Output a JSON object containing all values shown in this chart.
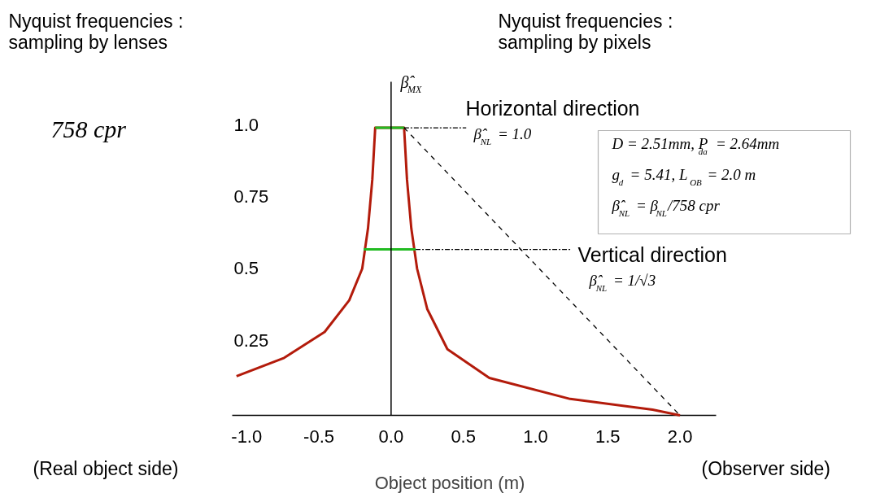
{
  "chart_data": {
    "type": "line",
    "xlabel": "Object position (m)",
    "ylabel": "β̂$_{MX}$",
    "xlim": [
      -1.1,
      2.25
    ],
    "xticks": [
      {
        "value": -1.0,
        "label": "-1.0"
      },
      {
        "value": -0.5,
        "label": "-0.5"
      },
      {
        "value": 0.0,
        "label": "0.0"
      },
      {
        "value": 0.5,
        "label": "0.5"
      },
      {
        "value": 1.0,
        "label": "1.0"
      },
      {
        "value": 1.5,
        "label": "1.5"
      },
      {
        "value": 2.0,
        "label": "2.0"
      }
    ],
    "ylim": [
      0,
      1.16
    ],
    "yticks": [
      {
        "value": 0.25,
        "label": "0.25"
      },
      {
        "value": 0.5,
        "label": "0.5"
      },
      {
        "value": 0.75,
        "label": "0.75"
      },
      {
        "value": 1.0,
        "label": "1.0"
      }
    ],
    "grid": false,
    "marker": "none",
    "series": [
      {
        "color": "#b31b0b",
        "line_style": "solid",
        "x": [
          -1.07,
          -0.74,
          -0.46,
          -0.29,
          -0.2,
          -0.16,
          -0.13,
          -0.11,
          0.09,
          0.11,
          0.14,
          0.18,
          0.25,
          0.39,
          0.68,
          1.24,
          1.81,
          2.0
        ],
        "values": [
          0.136,
          0.2,
          0.29,
          0.4,
          0.51,
          0.65,
          0.82,
          1.0,
          1.0,
          0.82,
          0.65,
          0.51,
          0.37,
          0.23,
          0.13,
          0.057,
          0.02,
          0.0
        ]
      },
      {
        "color": "#22bb22",
        "line_style": "solid",
        "x": [
          -0.11,
          0.09
        ],
        "values": [
          1.0,
          1.0
        ]
      },
      {
        "color": "#22bb22",
        "line_style": "solid",
        "x": [
          -0.19,
          0.17
        ],
        "values": [
          0.577,
          0.577
        ]
      },
      {
        "color": "#000000",
        "line_style": "dashdot",
        "x": [
          0.09,
          0.52
        ],
        "values": [
          1.0,
          1.0
        ]
      },
      {
        "color": "#000000",
        "line_style": "dashdot",
        "x": [
          0.17,
          1.25
        ],
        "values": [
          0.577,
          0.577
        ]
      },
      {
        "color": "#000000",
        "line_style": "dashed",
        "x": [
          0.09,
          2.0
        ],
        "values": [
          1.0,
          0.0
        ]
      }
    ],
    "ref_lines": [
      {
        "axis": "x",
        "value": 0,
        "color": "#000000",
        "line_style": "solid"
      }
    ],
    "annotations": [
      "Nyquist frequencies :\nsampling by lenses",
      "Nyquist frequencies :\nsampling by pixels",
      "758 cpr",
      "Horizontal direction",
      "β̂$_{NL}$ = 1.0",
      "Vertical direction",
      "β̂$_{NL}$ = 1/√3",
      "(Real object side)",
      "(Observer side)",
      "D = 2.51mm, P$_{da}$ = 2.64mm",
      "g$_{d}$ = 5.41, L$_{OB}$ = 2.0 m",
      "β̂$_{NL}$ = β$_{NL}$/758 cpr"
    ]
  }
}
